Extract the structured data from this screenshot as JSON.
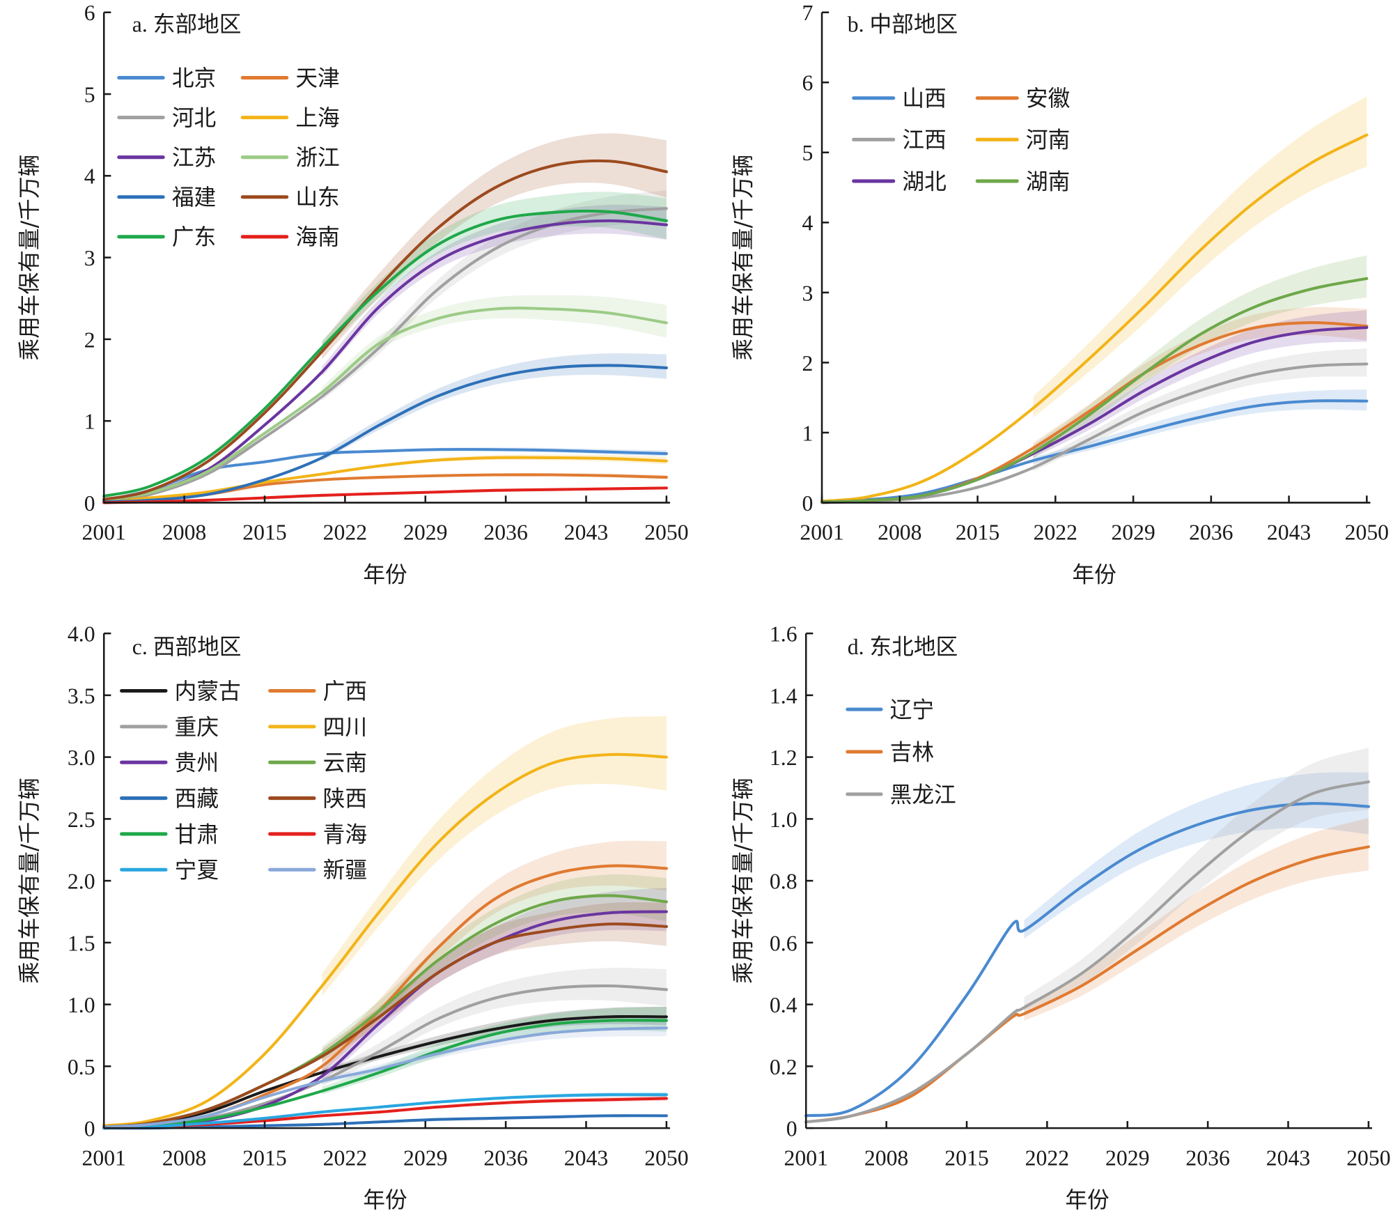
{
  "chart_data": [
    {
      "type": "line",
      "title": "a. 东部地区",
      "xlabel": "年份",
      "ylabel": "乘用车保有量/千万辆",
      "xlim": [
        2001,
        2050
      ],
      "ylim": [
        0,
        6
      ],
      "xticks": [
        2001,
        2008,
        2015,
        2022,
        2029,
        2036,
        2043,
        2050
      ],
      "yticks": [
        "0",
        "1",
        "2",
        "3",
        "4",
        "5",
        "6"
      ],
      "yticks_values": [
        0,
        1,
        2,
        3,
        4,
        5,
        6
      ],
      "legend_columns": 2,
      "legend_position": "top-left",
      "x": [
        2001,
        2005,
        2010,
        2015,
        2020,
        2025,
        2030,
        2035,
        2040,
        2045,
        2050
      ],
      "series": [
        {
          "name": "北京",
          "color": "#4a8ad0",
          "values": [
            0.03,
            0.15,
            0.4,
            0.5,
            0.6,
            0.63,
            0.65,
            0.65,
            0.64,
            0.62,
            0.6
          ],
          "band": 0.07
        },
        {
          "name": "天津",
          "color": "#e07a30",
          "values": [
            0.01,
            0.04,
            0.1,
            0.22,
            0.28,
            0.31,
            0.33,
            0.34,
            0.34,
            0.33,
            0.31
          ],
          "band": 0.05
        },
        {
          "name": "河北",
          "color": "#a0a0a0",
          "values": [
            0.02,
            0.1,
            0.35,
            0.8,
            1.3,
            1.9,
            2.6,
            3.1,
            3.4,
            3.55,
            3.6
          ],
          "band": 0.4
        },
        {
          "name": "上海",
          "color": "#f2b418",
          "values": [
            0.02,
            0.06,
            0.13,
            0.25,
            0.35,
            0.45,
            0.52,
            0.55,
            0.55,
            0.54,
            0.51
          ],
          "band": 0.09
        },
        {
          "name": "江苏",
          "color": "#6a35a0",
          "values": [
            0.03,
            0.12,
            0.4,
            0.95,
            1.6,
            2.4,
            2.95,
            3.25,
            3.4,
            3.45,
            3.4
          ],
          "band": 0.4
        },
        {
          "name": "浙江",
          "color": "#9ccb86",
          "values": [
            0.03,
            0.12,
            0.38,
            0.85,
            1.35,
            1.95,
            2.25,
            2.37,
            2.37,
            2.32,
            2.2
          ],
          "band": 0.4
        },
        {
          "name": "福建",
          "color": "#2e70b8",
          "values": [
            0.01,
            0.03,
            0.1,
            0.28,
            0.55,
            0.95,
            1.3,
            1.53,
            1.65,
            1.68,
            1.65
          ],
          "band": 0.3
        },
        {
          "name": "山东",
          "color": "#9c4a1e",
          "values": [
            0.04,
            0.15,
            0.5,
            1.1,
            1.85,
            2.65,
            3.35,
            3.85,
            4.12,
            4.18,
            4.05
          ],
          "band": 0.7
        },
        {
          "name": "广东",
          "color": "#1fa84a",
          "values": [
            0.08,
            0.2,
            0.55,
            1.15,
            1.9,
            2.6,
            3.15,
            3.45,
            3.55,
            3.56,
            3.45
          ],
          "band": 0.5
        },
        {
          "name": "海南",
          "color": "#e4201c",
          "values": [
            0.0,
            0.01,
            0.03,
            0.06,
            0.09,
            0.11,
            0.13,
            0.15,
            0.16,
            0.17,
            0.18
          ],
          "band": 0.03
        }
      ]
    },
    {
      "type": "line",
      "title": "b. 中部地区",
      "xlabel": "年份",
      "ylabel": "乘用车保有量/千万辆",
      "xlim": [
        2001,
        2050
      ],
      "ylim": [
        0,
        7
      ],
      "xticks": [
        2001,
        2008,
        2015,
        2022,
        2029,
        2036,
        2043,
        2050
      ],
      "yticks": [
        "0",
        "1",
        "2",
        "3",
        "4",
        "5",
        "6",
        "7"
      ],
      "yticks_values": [
        0,
        1,
        2,
        3,
        4,
        5,
        6,
        7
      ],
      "legend_columns": 2,
      "legend_position": "top-left",
      "x": [
        2001,
        2005,
        2010,
        2015,
        2020,
        2025,
        2030,
        2035,
        2040,
        2045,
        2050
      ],
      "series": [
        {
          "name": "山西",
          "color": "#4a8ad0",
          "values": [
            0.01,
            0.04,
            0.13,
            0.35,
            0.6,
            0.8,
            1.02,
            1.22,
            1.38,
            1.45,
            1.45
          ],
          "band": 0.3
        },
        {
          "name": "安徽",
          "color": "#e07a30",
          "values": [
            0.01,
            0.03,
            0.1,
            0.35,
            0.78,
            1.3,
            1.85,
            2.25,
            2.5,
            2.57,
            2.52
          ],
          "band": 0.45
        },
        {
          "name": "江西",
          "color": "#a0a0a0",
          "values": [
            0.0,
            0.02,
            0.07,
            0.22,
            0.5,
            0.9,
            1.3,
            1.6,
            1.83,
            1.95,
            1.98
          ],
          "band": 0.4
        },
        {
          "name": "河南",
          "color": "#f2b418",
          "values": [
            0.02,
            0.08,
            0.3,
            0.75,
            1.35,
            2.05,
            2.8,
            3.6,
            4.3,
            4.85,
            5.25
          ],
          "band": 1.0
        },
        {
          "name": "湖北",
          "color": "#6a35a0",
          "values": [
            0.01,
            0.03,
            0.1,
            0.33,
            0.7,
            1.12,
            1.6,
            2.0,
            2.3,
            2.45,
            2.5
          ],
          "band": 0.45
        },
        {
          "name": "湖南",
          "color": "#6ea84a",
          "values": [
            0.01,
            0.03,
            0.1,
            0.33,
            0.72,
            1.25,
            1.85,
            2.4,
            2.8,
            3.05,
            3.2
          ],
          "band": 0.6
        }
      ]
    },
    {
      "type": "line",
      "title": "c. 西部地区",
      "xlabel": "年份",
      "ylabel": "乘用车保有量/千万辆",
      "xlim": [
        2001,
        2050
      ],
      "ylim": [
        0,
        4.0
      ],
      "xticks": [
        2001,
        2008,
        2015,
        2022,
        2029,
        2036,
        2043,
        2050
      ],
      "yticks": [
        "0",
        "0.5",
        "1.0",
        "1.5",
        "2.0",
        "2.5",
        "3.0",
        "3.5",
        "4.0"
      ],
      "yticks_values": [
        0,
        0.5,
        1.0,
        1.5,
        2.0,
        2.5,
        3.0,
        3.5,
        4.0
      ],
      "legend_columns": 2,
      "legend_position": "top-left",
      "x": [
        2001,
        2005,
        2010,
        2015,
        2020,
        2025,
        2030,
        2035,
        2040,
        2045,
        2050
      ],
      "series": [
        {
          "name": "内蒙古",
          "color": "#1a1a1a",
          "values": [
            0.01,
            0.04,
            0.13,
            0.3,
            0.45,
            0.58,
            0.7,
            0.8,
            0.87,
            0.9,
            0.9
          ],
          "band": 0.15
        },
        {
          "name": "广西",
          "color": "#e07a30",
          "values": [
            0.01,
            0.03,
            0.1,
            0.27,
            0.5,
            0.95,
            1.45,
            1.85,
            2.05,
            2.12,
            2.1
          ],
          "band": 0.4
        },
        {
          "name": "重庆",
          "color": "#a0a0a0",
          "values": [
            0.01,
            0.03,
            0.08,
            0.2,
            0.38,
            0.62,
            0.88,
            1.05,
            1.13,
            1.15,
            1.12
          ],
          "band": 0.3
        },
        {
          "name": "四川",
          "color": "#f2b418",
          "values": [
            0.02,
            0.06,
            0.22,
            0.6,
            1.15,
            1.75,
            2.3,
            2.7,
            2.95,
            3.02,
            3.0
          ],
          "band": 0.6
        },
        {
          "name": "贵州",
          "color": "#6a35a0",
          "values": [
            0.0,
            0.02,
            0.06,
            0.18,
            0.42,
            0.85,
            1.25,
            1.5,
            1.67,
            1.74,
            1.75
          ],
          "band": 0.35
        },
        {
          "name": "云南",
          "color": "#6ea84a",
          "values": [
            0.01,
            0.04,
            0.15,
            0.35,
            0.6,
            0.95,
            1.35,
            1.65,
            1.83,
            1.88,
            1.83
          ],
          "band": 0.35
        },
        {
          "name": "西藏",
          "color": "#2e70b8",
          "values": [
            0.0,
            0.0,
            0.01,
            0.02,
            0.03,
            0.05,
            0.07,
            0.08,
            0.09,
            0.1,
            0.1
          ],
          "band": 0.02
        },
        {
          "name": "陕西",
          "color": "#9c4a1e",
          "values": [
            0.01,
            0.04,
            0.15,
            0.35,
            0.58,
            0.9,
            1.25,
            1.5,
            1.6,
            1.65,
            1.63
          ],
          "band": 0.35
        },
        {
          "name": "甘肃",
          "color": "#1fa84a",
          "values": [
            0.0,
            0.02,
            0.07,
            0.17,
            0.3,
            0.45,
            0.62,
            0.76,
            0.84,
            0.87,
            0.87
          ],
          "band": 0.2
        },
        {
          "name": "青海",
          "color": "#e4201c",
          "values": [
            0.0,
            0.01,
            0.03,
            0.06,
            0.1,
            0.13,
            0.17,
            0.2,
            0.22,
            0.23,
            0.24
          ],
          "band": 0.04
        },
        {
          "name": "宁夏",
          "color": "#29a6e0",
          "values": [
            0.0,
            0.01,
            0.04,
            0.08,
            0.13,
            0.17,
            0.21,
            0.24,
            0.26,
            0.27,
            0.27
          ],
          "band": 0.04
        },
        {
          "name": "新疆",
          "color": "#88a8d8",
          "values": [
            0.01,
            0.03,
            0.1,
            0.25,
            0.38,
            0.48,
            0.6,
            0.7,
            0.77,
            0.8,
            0.81
          ],
          "band": 0.15
        }
      ]
    },
    {
      "type": "line",
      "title": "d. 东北地区",
      "xlabel": "年份",
      "ylabel": "乘用车保有量/千万辆",
      "xlim": [
        2001,
        2050
      ],
      "ylim": [
        0,
        1.6
      ],
      "xticks": [
        2001,
        2008,
        2015,
        2022,
        2029,
        2036,
        2043,
        2050
      ],
      "yticks": [
        "0",
        "0.2",
        "0.4",
        "0.6",
        "0.8",
        "1.0",
        "1.2",
        "1.4",
        "1.6"
      ],
      "yticks_values": [
        0,
        0.2,
        0.4,
        0.6,
        0.8,
        1.0,
        1.2,
        1.4,
        1.6
      ],
      "legend_columns": 1,
      "legend_position": "top-left",
      "x": [
        2001,
        2005,
        2010,
        2015,
        2019,
        2020,
        2025,
        2030,
        2035,
        2040,
        2045,
        2050
      ],
      "series": [
        {
          "name": "辽宁",
          "color": "#4a8ad0",
          "values": [
            0.04,
            0.06,
            0.19,
            0.43,
            0.66,
            0.64,
            0.78,
            0.9,
            0.98,
            1.03,
            1.05,
            1.04
          ],
          "band": 0.2
        },
        {
          "name": "吉林",
          "color": "#e07a30",
          "values": [
            0.02,
            0.04,
            0.1,
            0.24,
            0.36,
            0.37,
            0.46,
            0.58,
            0.7,
            0.8,
            0.87,
            0.91
          ],
          "band": 0.17
        },
        {
          "name": "黑龙江",
          "color": "#a0a0a0",
          "values": [
            0.02,
            0.04,
            0.11,
            0.24,
            0.37,
            0.39,
            0.5,
            0.65,
            0.82,
            0.97,
            1.08,
            1.12
          ],
          "band": 0.2
        }
      ]
    }
  ]
}
